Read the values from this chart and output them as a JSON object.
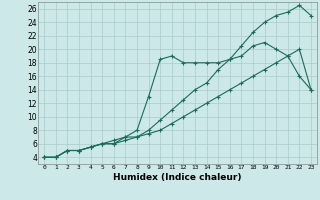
{
  "xlabel": "Humidex (Indice chaleur)",
  "bg_color": "#cce8e8",
  "grid_color": "#aacccc",
  "line_color": "#1a6b5a",
  "xlim": [
    -0.5,
    23.5
  ],
  "ylim": [
    3,
    27
  ],
  "xticks": [
    0,
    1,
    2,
    3,
    4,
    5,
    6,
    7,
    8,
    9,
    10,
    11,
    12,
    13,
    14,
    15,
    16,
    17,
    18,
    19,
    20,
    21,
    22,
    23
  ],
  "yticks": [
    4,
    6,
    8,
    10,
    12,
    14,
    16,
    18,
    20,
    22,
    24,
    26
  ],
  "line1_x": [
    0,
    1,
    2,
    3,
    4,
    5,
    6,
    7,
    8,
    9,
    10,
    11,
    12,
    13,
    14,
    15,
    16,
    17,
    18,
    19,
    20,
    21,
    22,
    23
  ],
  "line1_y": [
    4,
    4,
    5,
    5,
    5.5,
    6,
    6.5,
    7,
    8,
    13,
    18.5,
    19,
    18,
    18,
    18,
    18,
    18.5,
    19,
    20.5,
    21,
    20,
    19,
    16,
    14
  ],
  "line2_x": [
    0,
    1,
    2,
    3,
    4,
    5,
    6,
    7,
    8,
    9,
    10,
    11,
    12,
    13,
    14,
    15,
    16,
    17,
    18,
    19,
    20,
    21,
    22,
    23
  ],
  "line2_y": [
    4,
    4,
    5,
    5,
    5.5,
    6,
    6,
    6.5,
    7,
    7.5,
    8,
    9,
    10,
    11,
    12,
    13,
    14,
    15,
    16,
    17,
    18,
    19,
    20,
    14
  ],
  "line3_x": [
    0,
    1,
    2,
    3,
    4,
    5,
    6,
    7,
    8,
    9,
    10,
    11,
    12,
    13,
    14,
    15,
    16,
    17,
    18,
    19,
    20,
    21,
    22,
    23
  ],
  "line3_y": [
    4,
    4,
    5,
    5,
    5.5,
    6,
    6,
    7,
    7,
    8,
    9.5,
    11,
    12.5,
    14,
    15,
    17,
    18.5,
    20.5,
    22.5,
    24,
    25,
    25.5,
    26.5,
    25
  ]
}
